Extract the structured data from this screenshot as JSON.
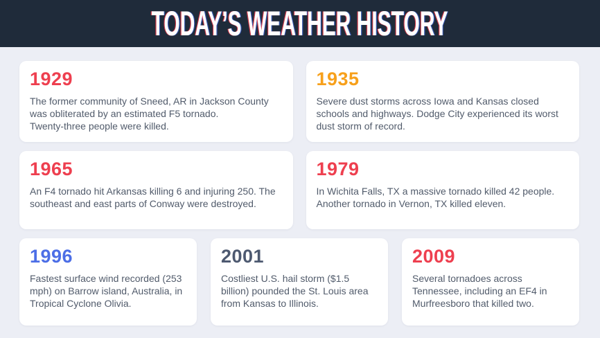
{
  "header": {
    "title": "TODAY’S WEATHER HISTORY",
    "background_color": "#1f2b3a",
    "title_color": "#ffffff",
    "title_fringe_left_color": "#ee3f4f",
    "title_fringe_right_color": "#3f6ae0"
  },
  "page": {
    "background_color": "#eceef5",
    "card_background_color": "#ffffff",
    "body_text_color": "#515b6b"
  },
  "cards": [
    {
      "year": "1929",
      "color": "#ee3f4f",
      "text": "The former community of Sneed, AR in Jackson County\nwas obliterated by an estimated F5 tornado.\nTwenty-three people were killed."
    },
    {
      "year": "1935",
      "color": "#f7a01b",
      "text": "Severe dust storms across Iowa and Kansas closed\nschools and highways. Dodge City experienced its worst\ndust storm of record."
    },
    {
      "year": "1965",
      "color": "#ee3f4f",
      "text": "An F4 tornado hit Arkansas killing 6 and injuring 250. The\nsoutheast and east parts of Conway were destroyed."
    },
    {
      "year": "1979",
      "color": "#ee3f4f",
      "text": "In Wichita Falls, TX a massive tornado killed 42 people.\nAnother tornado in Vernon, TX killed eleven."
    },
    {
      "year": "1996",
      "color": "#4c6ee6",
      "text": "Fastest surface wind recorded (253\nmph) on Barrow island, Australia, in\nTropical Cyclone Olivia."
    },
    {
      "year": "2001",
      "color": "#4d5970",
      "text": "Costliest U.S. hail storm ($1.5\nbillion) pounded the St. Louis area\nfrom Kansas to Illinois."
    },
    {
      "year": "2009",
      "color": "#ee3f4f",
      "text": "Several tornadoes across\nTennessee, including an EF4 in\nMurfreesboro that killed two."
    }
  ]
}
